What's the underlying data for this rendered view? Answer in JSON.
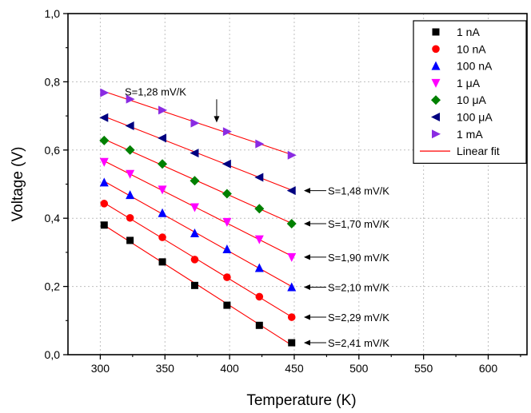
{
  "chart_data": {
    "type": "scatter",
    "title": "",
    "xlabel": "Temperature (K)",
    "ylabel": "Voltage (V)",
    "xlim": [
      275,
      630
    ],
    "ylim": [
      0.0,
      1.0
    ],
    "x_ticks": [
      "300",
      "350",
      "400",
      "450",
      "500",
      "550",
      "600"
    ],
    "y_ticks": [
      "0,0",
      "0,2",
      "0,4",
      "0,6",
      "0,8",
      "1,0"
    ],
    "grid": true,
    "legend_position": "top-right",
    "x": [
      303,
      323,
      348,
      373,
      398,
      423,
      448
    ],
    "series": [
      {
        "name": "1 nA",
        "marker": "square",
        "color": "#000000",
        "values": [
          0.38,
          0.335,
          0.272,
          0.203,
          0.145,
          0.086,
          0.035
        ]
      },
      {
        "name": "10 nA",
        "marker": "circle",
        "color": "#ff0000",
        "values": [
          0.443,
          0.401,
          0.344,
          0.279,
          0.227,
          0.17,
          0.11
        ]
      },
      {
        "name": "100 nA",
        "marker": "triangle-up",
        "color": "#0000ff",
        "values": [
          0.505,
          0.468,
          0.415,
          0.356,
          0.309,
          0.254,
          0.198
        ]
      },
      {
        "name": "1 μA",
        "marker": "triangle-down",
        "color": "#ff00ff",
        "values": [
          0.565,
          0.53,
          0.484,
          0.432,
          0.389,
          0.338,
          0.286
        ]
      },
      {
        "name": "10 μA",
        "marker": "diamond",
        "color": "#008000",
        "values": [
          0.628,
          0.6,
          0.559,
          0.51,
          0.472,
          0.428,
          0.384
        ]
      },
      {
        "name": "100 μA",
        "marker": "triangle-left",
        "color": "#000080",
        "values": [
          0.695,
          0.671,
          0.635,
          0.591,
          0.559,
          0.52,
          0.481
        ]
      },
      {
        "name": "1 mA",
        "marker": "triangle-right",
        "color": "#8a2be2",
        "values": [
          0.768,
          0.749,
          0.717,
          0.679,
          0.654,
          0.618,
          0.585
        ]
      }
    ],
    "fit_label": "Linear fit",
    "fit_color": "#ff0000",
    "annotations": [
      {
        "text": "S=1,28 mV/K",
        "target_x": 390,
        "target_y": 0.655
      },
      {
        "text": "S=1,48 mV/K",
        "target_x": 450,
        "target_y": 0.481
      },
      {
        "text": "S=1,70 mV/K",
        "target_x": 450,
        "target_y": 0.384
      },
      {
        "text": "S=1,90 mV/K",
        "target_x": 450,
        "target_y": 0.286
      },
      {
        "text": "S=2,10 mV/K",
        "target_x": 450,
        "target_y": 0.198
      },
      {
        "text": "S=2,29 mV/K",
        "target_x": 450,
        "target_y": 0.11
      },
      {
        "text": "S=2,41 mV/K",
        "target_x": 450,
        "target_y": 0.035
      }
    ]
  }
}
